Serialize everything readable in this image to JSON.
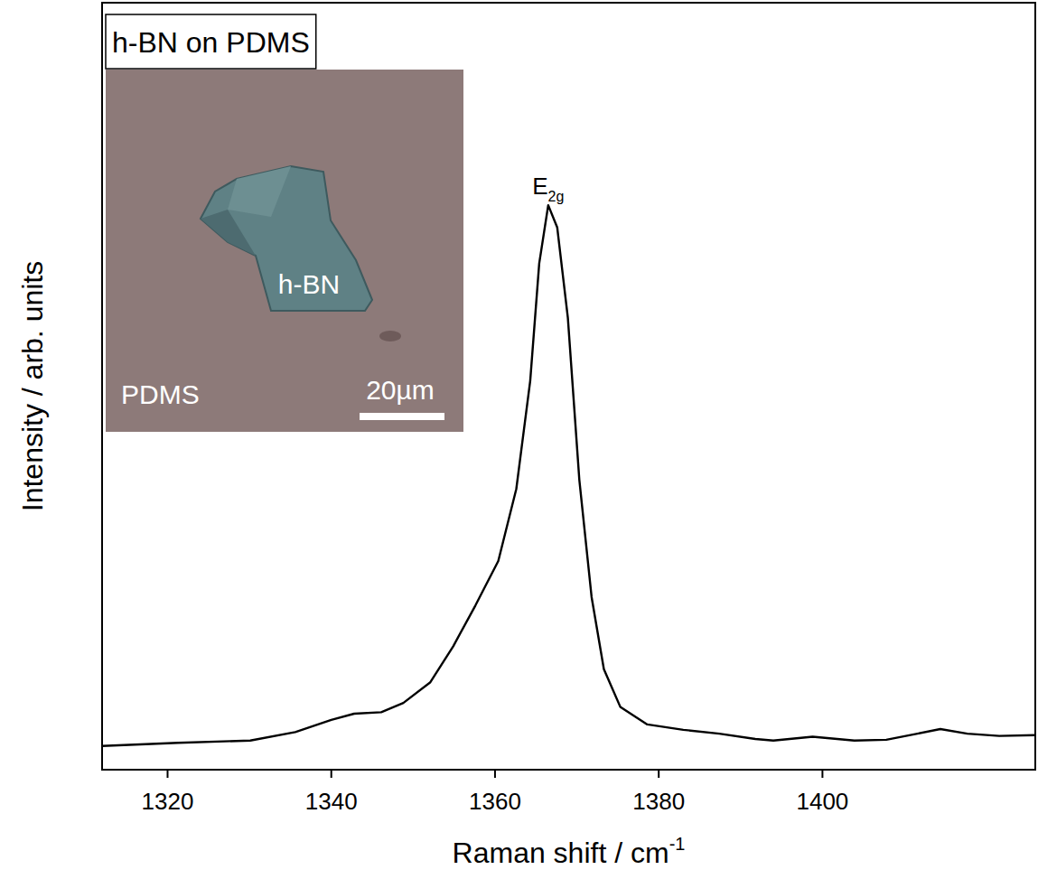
{
  "chart_data": {
    "type": "line",
    "title": "h-BN on PDMS",
    "x_label": {
      "text": "Raman shift / cm",
      "sup": "-1"
    },
    "y_label": "Intensity / arb. units",
    "annotations": [
      {
        "text": "E",
        "sub": "2g"
      }
    ],
    "inset": {
      "flake": "h-BN",
      "substrate": "PDMS",
      "scale_bar": "20µm"
    },
    "x": [
      1312.0,
      1321.3,
      1330.1,
      1335.6,
      1340.0,
      1342.8,
      1346.1,
      1348.8,
      1352.1,
      1354.9,
      1357.6,
      1360.4,
      1362.6,
      1364.3,
      1365.4,
      1366.5,
      1367.6,
      1368.9,
      1370.3,
      1371.8,
      1373.3,
      1375.3,
      1378.6,
      1383.0,
      1387.4,
      1391.8,
      1394.0,
      1398.8,
      1403.9,
      1407.8,
      1411.6,
      1414.4,
      1417.7,
      1421.6,
      1426.0
    ],
    "series": [
      {
        "name": "h-BN",
        "color": "#000000",
        "line_style": "solid",
        "values": [
          0.031,
          0.035,
          0.038,
          0.049,
          0.065,
          0.073,
          0.075,
          0.087,
          0.114,
          0.161,
          0.214,
          0.272,
          0.366,
          0.507,
          0.66,
          0.736,
          0.707,
          0.589,
          0.378,
          0.225,
          0.131,
          0.082,
          0.059,
          0.052,
          0.047,
          0.04,
          0.038,
          0.043,
          0.038,
          0.039,
          0.047,
          0.053,
          0.047,
          0.044,
          0.045
        ]
      }
    ],
    "xlim": [
      1312,
      1426
    ],
    "xticks": [
      1320,
      1340,
      1360,
      1380,
      1400
    ],
    "ylim": [
      0,
      1
    ],
    "yticks": [],
    "grid": false,
    "tick_labels": "x"
  }
}
